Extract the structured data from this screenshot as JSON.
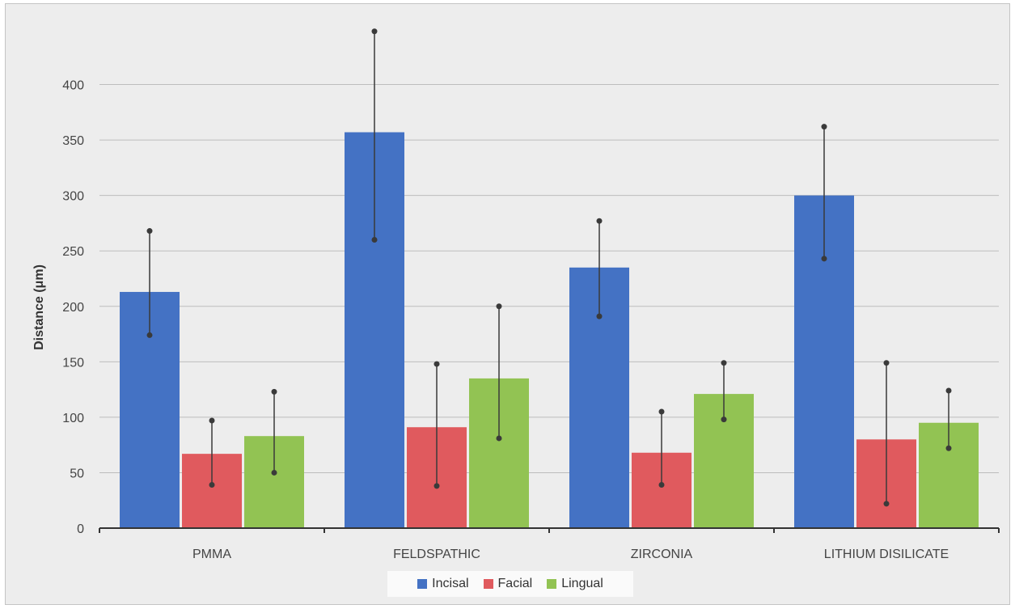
{
  "chart_data": {
    "type": "bar",
    "ylabel": "Distance (μm)",
    "xlabel": "",
    "ylim": [
      0,
      450
    ],
    "yticks": [
      0,
      50,
      100,
      150,
      200,
      250,
      300,
      350,
      400
    ],
    "grid": true,
    "legend_position": "bottom",
    "categories": [
      "PMMA",
      "FELDSPATHIC",
      "ZIRCONIA",
      "LITHIUM DISILICATE"
    ],
    "series": [
      {
        "name": "Incisal",
        "color": "#4472c4",
        "values": [
          213,
          357,
          235,
          300
        ],
        "error_low": [
          174,
          260,
          191,
          243
        ],
        "error_high": [
          268,
          448,
          277,
          362
        ]
      },
      {
        "name": "Facial",
        "color": "#e05a5e",
        "values": [
          67,
          91,
          68,
          80
        ],
        "error_low": [
          39,
          38,
          39,
          22
        ],
        "error_high": [
          97,
          148,
          105,
          149
        ]
      },
      {
        "name": "Lingual",
        "color": "#92c353",
        "values": [
          83,
          135,
          121,
          95
        ],
        "error_low": [
          50,
          81,
          98,
          72
        ],
        "error_high": [
          123,
          200,
          149,
          124
        ]
      }
    ]
  }
}
